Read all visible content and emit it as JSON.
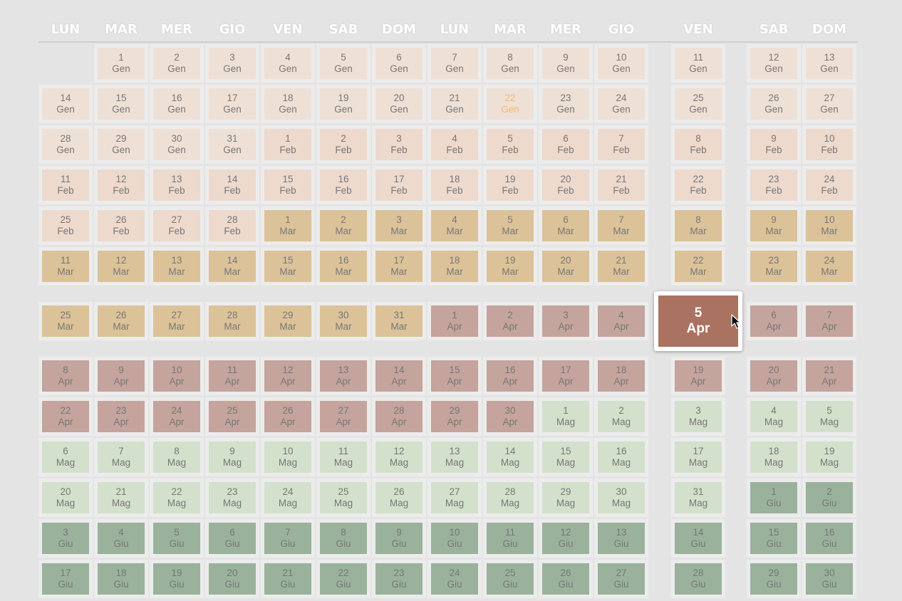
{
  "weekday_headers": [
    "LUN",
    "MAR",
    "MER",
    "GIO",
    "VEN",
    "SAB",
    "DOM",
    "LUN",
    "MAR",
    "MER",
    "GIO",
    "VEN",
    "SAB",
    "DOM"
  ],
  "colors": {
    "Gen": "#efe0d5",
    "Feb": "#eed9cd",
    "Mar": "#dcc298",
    "Apr": "#c4a49c",
    "Mag": "#d3e0cb",
    "Giu": "#9ab29c",
    "selected": "#aa7261",
    "today_text": "#f2bb6c"
  },
  "calendar": {
    "months": [
      {
        "name": "Gen",
        "start_column": 1,
        "days": 31
      },
      {
        "name": "Feb",
        "start_column": 4,
        "days": 28
      },
      {
        "name": "Mar",
        "start_column": 4,
        "days": 31
      },
      {
        "name": "Apr",
        "start_column": 7,
        "days": 30
      },
      {
        "name": "Mag",
        "start_column": 2,
        "days": 31
      },
      {
        "name": "Giu",
        "start_column": 5,
        "days": 30
      }
    ],
    "rows_shown": 14,
    "today": {
      "day": "22",
      "month": "Gen"
    },
    "selected": {
      "day": "5",
      "month": "Apr"
    }
  },
  "icons": {
    "cursor": "mouse-pointer-icon"
  }
}
